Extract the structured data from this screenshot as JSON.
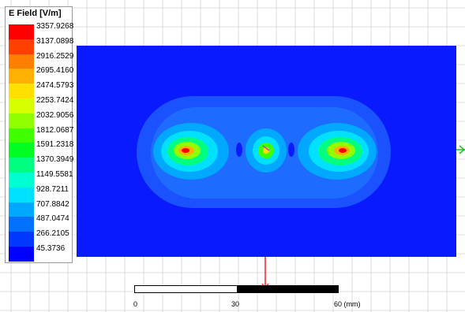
{
  "legend": {
    "title": "E Field [V/m]",
    "levels": [
      {
        "label": "3357.9268",
        "color": "#ff0000"
      },
      {
        "label": "3137.0898",
        "color": "#ff4000"
      },
      {
        "label": "2916.2529",
        "color": "#ff8000"
      },
      {
        "label": "2695.4160",
        "color": "#ffb000"
      },
      {
        "label": "2474.5793",
        "color": "#ffe000"
      },
      {
        "label": "2253.7424",
        "color": "#d8ff00"
      },
      {
        "label": "2032.9056",
        "color": "#90ff00"
      },
      {
        "label": "1812.0687",
        "color": "#40ff00"
      },
      {
        "label": "1591.2318",
        "color": "#00ff20"
      },
      {
        "label": "1370.3949",
        "color": "#00ff80"
      },
      {
        "label": "1149.5581",
        "color": "#00ffd0"
      },
      {
        "label": "928.7211",
        "color": "#00e0ff"
      },
      {
        "label": "707.8842",
        "color": "#00a8ff"
      },
      {
        "label": "487.0474",
        "color": "#0070ff"
      },
      {
        "label": "266.2105",
        "color": "#0038ff"
      },
      {
        "label": "45.3736",
        "color": "#0000ff"
      }
    ]
  },
  "scale": {
    "start_label": "0",
    "mid_label": "30",
    "end_label": "60 (mm)"
  },
  "colors": {
    "background_field": "#0a1aff",
    "grid_line": "#d4d4d4",
    "axis_red": "#ff2020",
    "axis_green": "#20c020"
  }
}
